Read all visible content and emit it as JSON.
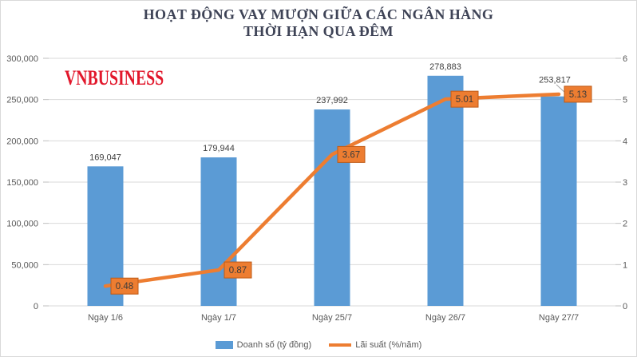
{
  "title": {
    "line1": "HOẠT ĐỘNG VAY MƯỢN GIỮA CÁC NGÂN HÀNG",
    "line2": "THỜI HẠN QUA ĐÊM"
  },
  "watermark": "VNBUSINESS",
  "chart_data": {
    "type": "bar+line-combo",
    "categories": [
      "Ngày 1/6",
      "Ngày 1/7",
      "Ngày 25/7",
      "Ngày 26/7",
      "Ngày 27/7"
    ],
    "series": [
      {
        "name": "Doanh số (tỷ đồng)",
        "type": "bar",
        "axis": "left",
        "values": [
          169047,
          179944,
          237992,
          278883,
          253817
        ],
        "labels": [
          "169,047",
          "179,944",
          "237,992",
          "278,883",
          "253,817"
        ]
      },
      {
        "name": "Lãi suất (%/năm)",
        "type": "line",
        "axis": "right",
        "values": [
          0.48,
          0.87,
          3.67,
          5.01,
          5.13
        ],
        "labels": [
          "0.48",
          "0.87",
          "3.67",
          "5.01",
          "5.13"
        ]
      }
    ],
    "left_axis": {
      "min": 0,
      "max": 300000,
      "step": 50000,
      "ticks": [
        "0",
        "50,000",
        "100,000",
        "150,000",
        "200,000",
        "250,000",
        "300,000"
      ]
    },
    "right_axis": {
      "min": 0,
      "max": 6,
      "step": 1,
      "ticks": [
        "0",
        "1",
        "2",
        "3",
        "4",
        "5",
        "6"
      ]
    },
    "grid": true,
    "legend_position": "bottom"
  },
  "colors": {
    "bar": "#5b9bd5",
    "line": "#ed7d31",
    "line_label_fill": "#ed7d31",
    "line_label_border": "#be5b17",
    "line_label_text": "#3b3b3b",
    "bar_label_text": "#404040",
    "axis_text": "#595959",
    "gridline": "#d9d9d9",
    "tick_mark": "#bfbfbf",
    "leader_line": "#a6a6a6",
    "title_text": "#3e4356",
    "watermark_text": "#e2182c"
  }
}
